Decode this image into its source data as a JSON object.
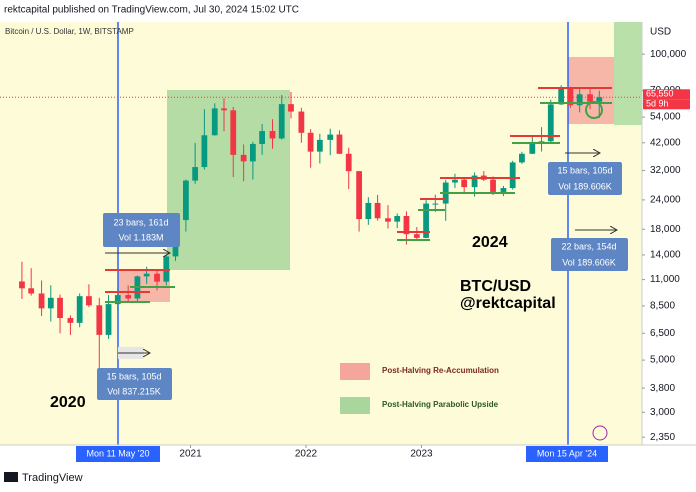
{
  "header": "rektcapital published on TradingView.com, Jul 30, 2024 15:02 UTC",
  "footer": "TradingView",
  "chart_data": {
    "type": "candlestick",
    "title": "Bitcoin / U.S. Dollar, 1W, BITSTAMP",
    "currency": "USD",
    "log_scale": true,
    "grid": false,
    "xlim": [
      2019.35,
      2024.91
    ],
    "xticks": [
      2021,
      2022,
      2023
    ],
    "ylim": [
      1880,
      137000
    ],
    "yticks": [
      {
        "value": 100000,
        "label": "100,000"
      },
      {
        "value": 70000,
        "label": "70,000"
      },
      {
        "value": 54000,
        "label": "54,000"
      },
      {
        "value": 42000,
        "label": "42,000"
      },
      {
        "value": 32000,
        "label": "32,000"
      },
      {
        "value": 24000,
        "label": "24,000"
      },
      {
        "value": 18000,
        "label": "18,000"
      },
      {
        "value": 14000,
        "label": "14,000"
      },
      {
        "value": 11000,
        "label": "11,000"
      },
      {
        "value": 8500,
        "label": "8,500"
      },
      {
        "value": 6500,
        "label": "6,500"
      },
      {
        "value": 5000,
        "label": "5,000"
      },
      {
        "value": 3800,
        "label": "3,800"
      },
      {
        "value": 3000,
        "label": "3,000"
      },
      {
        "value": 2350,
        "label": "2,350"
      }
    ],
    "up_color": "#089981",
    "down_color": "#f23645",
    "x": [
      2019.54,
      2019.62,
      2019.71,
      2019.79,
      2019.87,
      2019.96,
      2020.04,
      2020.12,
      2020.21,
      2020.29,
      2020.37,
      2020.46,
      2020.54,
      2020.62,
      2020.71,
      2020.79,
      2020.87,
      2020.96,
      2021.04,
      2021.12,
      2021.21,
      2021.29,
      2021.37,
      2021.46,
      2021.54,
      2021.62,
      2021.71,
      2021.79,
      2021.87,
      2021.96,
      2022.04,
      2022.12,
      2022.21,
      2022.29,
      2022.37,
      2022.46,
      2022.54,
      2022.62,
      2022.71,
      2022.79,
      2022.87,
      2022.96,
      2023.04,
      2023.12,
      2023.21,
      2023.29,
      2023.37,
      2023.46,
      2023.54,
      2023.62,
      2023.71,
      2023.79,
      2023.87,
      2023.96,
      2024.04,
      2024.12,
      2024.21,
      2024.29,
      2024.37,
      2024.46,
      2024.54
    ],
    "open": [
      10800,
      10100,
      9600,
      8300,
      9200,
      7550,
      7200,
      9350,
      8550,
      6400,
      8650,
      9450,
      9140,
      11350,
      11650,
      10780,
      13800,
      19700,
      29000,
      33100,
      45200,
      58800,
      57700,
      37300,
      35000,
      41500,
      47100,
      43800,
      61300,
      57000,
      46300,
      38500,
      43200,
      45500,
      37700,
      31800,
      19900,
      23300,
      20050,
      19400,
      20500,
      17150,
      16550,
      23150,
      23150,
      28450,
      29250,
      27200,
      30450,
      29250,
      25950,
      26950,
      34650,
      37700,
      42250,
      42600,
      61150,
      71300,
      60650,
      67500,
      62750
    ],
    "high": [
      13100,
      12300,
      10900,
      10400,
      9500,
      7750,
      9600,
      10500,
      9200,
      9450,
      10100,
      10400,
      11450,
      12470,
      12090,
      14100,
      19850,
      29300,
      41950,
      58350,
      61800,
      64900,
      59600,
      41300,
      42400,
      50500,
      52900,
      67000,
      69000,
      59100,
      47990,
      45850,
      48200,
      47450,
      40000,
      31900,
      24650,
      25200,
      22800,
      21000,
      21450,
      18400,
      23950,
      25250,
      29200,
      31000,
      29800,
      31400,
      31800,
      30200,
      27500,
      35200,
      38450,
      44700,
      48900,
      64000,
      73800,
      72700,
      71900,
      71950,
      70000
    ],
    "low": [
      9100,
      9400,
      7700,
      7300,
      6500,
      6400,
      6900,
      8400,
      3850,
      6150,
      8100,
      8850,
      8900,
      10550,
      9900,
      10400,
      13200,
      17600,
      28100,
      32300,
      45000,
      47000,
      30000,
      28800,
      29300,
      37300,
      39600,
      43300,
      53300,
      42000,
      32900,
      34300,
      37200,
      37600,
      26700,
      17600,
      18800,
      19600,
      18150,
      18200,
      15500,
      16300,
      16500,
      21350,
      19550,
      26950,
      25800,
      24800,
      28850,
      25150,
      24900,
      26550,
      34150,
      37600,
      38550,
      41900,
      60800,
      59100,
      56500,
      58500,
      53500
    ],
    "close": [
      10100,
      9600,
      8300,
      9200,
      7550,
      7200,
      9350,
      8550,
      6400,
      8650,
      9450,
      9140,
      11350,
      11650,
      10780,
      13800,
      19700,
      29000,
      33100,
      45200,
      58800,
      57700,
      37300,
      35000,
      41500,
      47100,
      43800,
      61300,
      57000,
      46300,
      38500,
      43200,
      45500,
      37700,
      31800,
      19900,
      23300,
      20050,
      19400,
      20500,
      17150,
      16550,
      23150,
      23150,
      28450,
      29250,
      27200,
      30450,
      29250,
      25950,
      26950,
      34650,
      37700,
      42250,
      42600,
      61150,
      71300,
      60650,
      67500,
      62750,
      65550
    ],
    "last_price": {
      "value": 65550,
      "label": "65,550"
    },
    "countdown": "5d 9h",
    "annotations": {
      "range1_bars": "23 bars, 161d",
      "range1_vol": "Vol 1.183M",
      "range2_bars": "15 bars, 105d",
      "range2_vol": "Vol 837.215K",
      "range3_bars": "15 bars, 105d",
      "range3_vol": "Vol 189.606K",
      "range4_bars": "22 bars, 154d",
      "range4_vol": "Vol 189.606K",
      "year_2020": "2020",
      "year_2024": "2024",
      "symbol": "BTC/USD",
      "author": "@rektcapital",
      "legend_red": "Post-Halving Re-Accumulation",
      "legend_green": "Post-Halving Parabolic Upside",
      "halving_2020": "Mon 11 May '20",
      "halving_2024": "Mon 15 Apr '24"
    }
  }
}
